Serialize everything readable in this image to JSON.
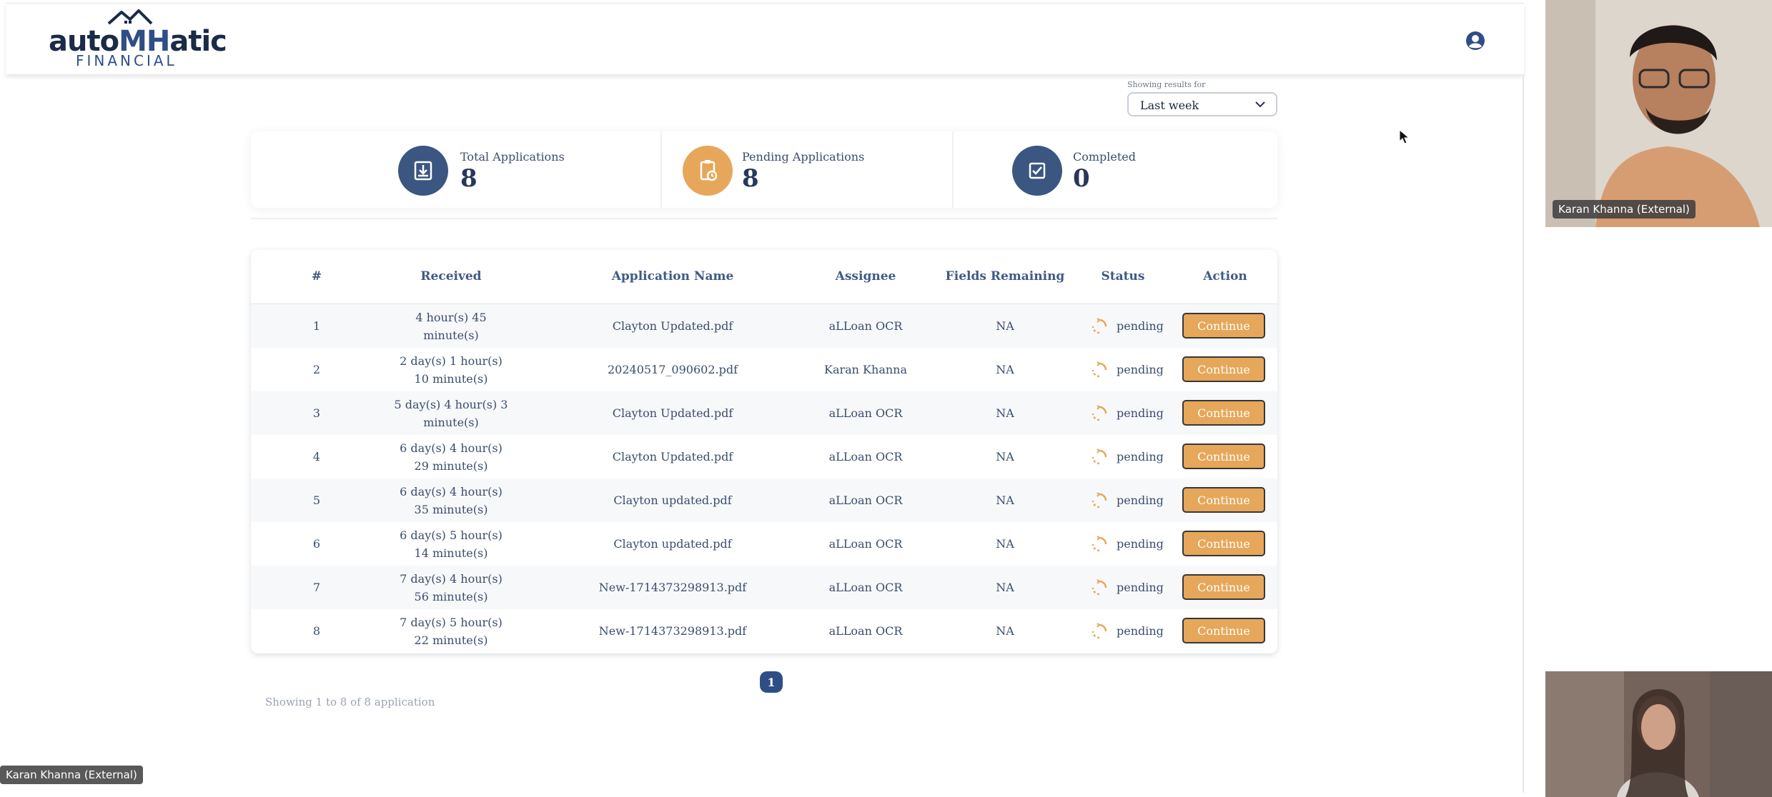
{
  "header": {
    "logo_main_left": "auto",
    "logo_main_accent": "MH",
    "logo_main_right": "atic",
    "logo_sub": "FINANCIAL",
    "user_icon": "user-circle-icon"
  },
  "filter": {
    "label": "Showing results for",
    "selected": "Last week"
  },
  "stats": [
    {
      "title": "Total Applications",
      "value": "8",
      "icon": "download-tray-icon",
      "color": "#3b5680"
    },
    {
      "title": "Pending Applications",
      "value": "8",
      "icon": "clipboard-clock-icon",
      "color": "#e6a75a"
    },
    {
      "title": "Completed",
      "value": "0",
      "icon": "checkbox-icon",
      "color": "#3b5680"
    }
  ],
  "table": {
    "headers": [
      "#",
      "Received",
      "Application Name",
      "Assignee",
      "Fields Remaining",
      "Status",
      "Action"
    ],
    "rows": [
      {
        "num": "1",
        "received": "4 hour(s) 45 minute(s)",
        "name": "Clayton Updated.pdf",
        "assignee": "aLLoan OCR",
        "fields": "NA",
        "status": "pending",
        "action": "Continue"
      },
      {
        "num": "2",
        "received": "2 day(s) 1 hour(s) 10 minute(s)",
        "name": "20240517_090602.pdf",
        "assignee": "Karan Khanna",
        "fields": "NA",
        "status": "pending",
        "action": "Continue"
      },
      {
        "num": "3",
        "received": "5 day(s) 4 hour(s) 3 minute(s)",
        "name": "Clayton Updated.pdf",
        "assignee": "aLLoan OCR",
        "fields": "NA",
        "status": "pending",
        "action": "Continue"
      },
      {
        "num": "4",
        "received": "6 day(s) 4 hour(s) 29 minute(s)",
        "name": "Clayton Updated.pdf",
        "assignee": "aLLoan OCR",
        "fields": "NA",
        "status": "pending",
        "action": "Continue"
      },
      {
        "num": "5",
        "received": "6 day(s) 4 hour(s) 35 minute(s)",
        "name": "Clayton updated.pdf",
        "assignee": "aLLoan OCR",
        "fields": "NA",
        "status": "pending",
        "action": "Continue"
      },
      {
        "num": "6",
        "received": "6 day(s) 5 hour(s) 14 minute(s)",
        "name": "Clayton updated.pdf",
        "assignee": "aLLoan OCR",
        "fields": "NA",
        "status": "pending",
        "action": "Continue"
      },
      {
        "num": "7",
        "received": "7 day(s) 4 hour(s) 56 minute(s)",
        "name": "New-1714373298913.pdf",
        "assignee": "aLLoan OCR",
        "fields": "NA",
        "status": "pending",
        "action": "Continue"
      },
      {
        "num": "8",
        "received": "7 day(s) 5 hour(s) 22 minute(s)",
        "name": "New-1714373298913.pdf",
        "assignee": "aLLoan OCR",
        "fields": "NA",
        "status": "pending",
        "action": "Continue"
      }
    ]
  },
  "pagination": {
    "current_page": "1",
    "summary": "Showing 1 to 8 of 8 application"
  },
  "video_call": {
    "top_participant": "Karan Khanna (External)",
    "bottom_label": "Karan Khanna (External)"
  },
  "colors": {
    "brand_navy": "#2f4e86",
    "accent_orange": "#e6a75a"
  }
}
